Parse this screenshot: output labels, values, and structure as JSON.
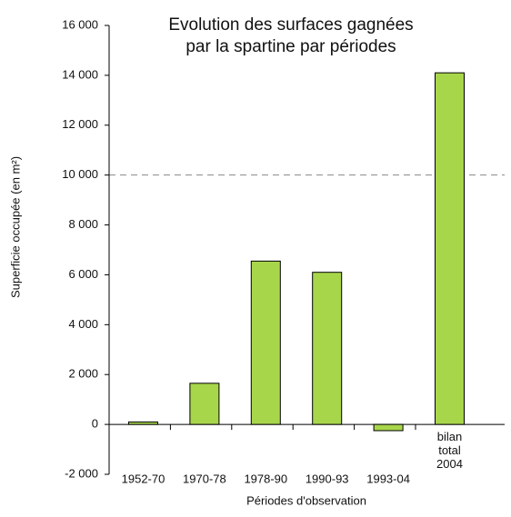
{
  "chart_data": {
    "type": "bar",
    "title": "Evolution des surfaces gagnées\npar la spartine par périodes",
    "x_label": "Périodes d'observation",
    "y_label": "Superficie occupée (en m²)",
    "categories": [
      "1952-70",
      "1970-78",
      "1978-90",
      "1990-93",
      "1993-04",
      "bilan\ntotal\n2004"
    ],
    "values": [
      100,
      1650,
      6550,
      6100,
      -250,
      14100
    ],
    "color": "#a8d64b",
    "ylim": [
      -2000,
      16000
    ],
    "yticks": [
      {
        "value": -2000,
        "label": "-2 000"
      },
      0,
      {
        "value": 2000,
        "label": "2 000"
      },
      {
        "value": 4000,
        "label": "4 000"
      },
      {
        "value": 6000,
        "label": "6 000"
      },
      {
        "value": 8000,
        "label": "8 000"
      },
      {
        "value": 10000,
        "label": "10 000"
      },
      {
        "value": 12000,
        "label": "12 000"
      },
      {
        "value": 14000,
        "label": "14 000"
      },
      {
        "value": 16000,
        "label": "16 000"
      }
    ],
    "reference_lines": [
      10000
    ],
    "grid": false
  }
}
